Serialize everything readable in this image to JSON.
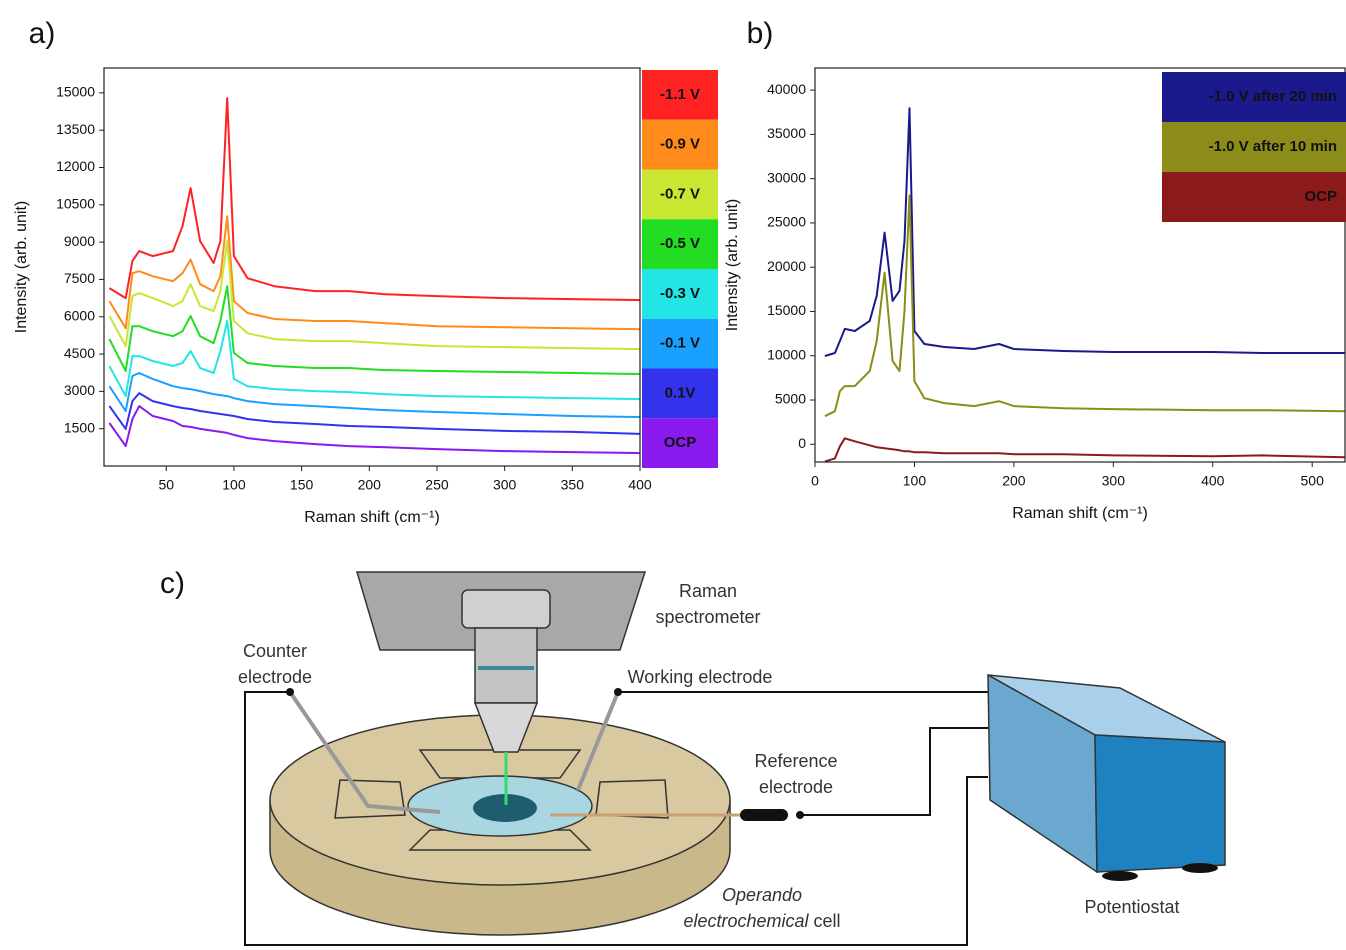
{
  "chart_data": [
    {
      "type": "line",
      "panel_label": "a)",
      "x_label": "Raman shift (cm⁻¹)",
      "y_label": "Intensity (arb. unit)",
      "x": [
        8,
        20,
        25,
        30,
        40,
        55,
        62,
        68,
        75,
        85,
        90,
        95,
        100,
        110,
        130,
        160,
        185,
        210,
        250,
        300,
        350,
        400
      ],
      "xlim": [
        4,
        400
      ],
      "xticks": [
        50,
        100,
        150,
        200,
        250,
        300,
        350,
        400
      ],
      "ylim": [
        0,
        16000
      ],
      "yticks": [
        1500,
        3000,
        4500,
        6000,
        7500,
        9000,
        10500,
        12000,
        13500,
        15000
      ],
      "legend": "right",
      "legend_text_color": "#000000",
      "series": [
        {
          "name": "-1.1 V",
          "color": "#ff2222",
          "values": [
            7150,
            6750,
            8240,
            8640,
            8440,
            8640,
            9640,
            11170,
            9040,
            8160,
            9040,
            14790,
            8440,
            7550,
            7230,
            7030,
            7030,
            6910,
            6830,
            6750,
            6710,
            6670
          ]
        },
        {
          "name": "-0.9 V",
          "color": "#ff8c1a",
          "values": [
            6630,
            5540,
            7750,
            7830,
            7630,
            7430,
            7750,
            8300,
            7310,
            7030,
            7630,
            10040,
            6630,
            6150,
            5910,
            5830,
            5830,
            5750,
            5620,
            5580,
            5540,
            5500
          ]
        },
        {
          "name": "-0.7 V",
          "color": "#c8e632",
          "values": [
            6030,
            4820,
            6830,
            6950,
            6750,
            6430,
            6630,
            7310,
            6430,
            6230,
            7030,
            9040,
            5830,
            5340,
            5100,
            5020,
            5020,
            4940,
            4820,
            4780,
            4740,
            4700
          ]
        },
        {
          "name": "-0.5 V",
          "color": "#22dd22",
          "values": [
            5100,
            3820,
            5620,
            5620,
            5420,
            5220,
            5420,
            6030,
            5220,
            4940,
            5830,
            7230,
            4540,
            4140,
            4020,
            3940,
            3940,
            3860,
            3820,
            3780,
            3740,
            3700
          ]
        },
        {
          "name": "-0.3 V",
          "color": "#22e6e6",
          "values": [
            4020,
            2810,
            4420,
            4420,
            4220,
            4020,
            4140,
            4620,
            3940,
            3740,
            4620,
            5830,
            3500,
            3210,
            3090,
            3010,
            2970,
            2890,
            2810,
            2770,
            2730,
            2690
          ]
        },
        {
          "name": "-0.1 V",
          "color": "#1aa0ff",
          "values": [
            3210,
            2210,
            3620,
            3740,
            3500,
            3210,
            3130,
            3090,
            3010,
            2890,
            2850,
            2810,
            2730,
            2610,
            2490,
            2410,
            2330,
            2250,
            2170,
            2090,
            2010,
            1970
          ]
        },
        {
          "name": "0.1V",
          "color": "#3333ee",
          "values": [
            2410,
            1490,
            2610,
            2930,
            2610,
            2410,
            2330,
            2290,
            2210,
            2130,
            2090,
            2050,
            2010,
            1890,
            1770,
            1690,
            1610,
            1570,
            1490,
            1410,
            1370,
            1290
          ]
        },
        {
          "name": "OCP",
          "color": "#8a1aee",
          "values": [
            1730,
            800,
            1890,
            2410,
            2010,
            1810,
            1610,
            1570,
            1490,
            1410,
            1370,
            1330,
            1250,
            1120,
            1000,
            880,
            800,
            760,
            680,
            600,
            560,
            520
          ]
        }
      ]
    },
    {
      "type": "line",
      "panel_label": "b)",
      "x_label": "Raman shift (cm⁻¹)",
      "y_label": "Intensity (arb. unit)",
      "x": [
        10,
        20,
        25,
        30,
        40,
        55,
        62,
        70,
        78,
        85,
        90,
        95,
        100,
        110,
        130,
        160,
        185,
        200,
        250,
        300,
        400,
        450,
        533
      ],
      "xlim": [
        0,
        533
      ],
      "xticks": [
        0,
        100,
        200,
        300,
        400,
        500
      ],
      "ylim": [
        -2000,
        42500
      ],
      "yticks": [
        0,
        5000,
        10000,
        15000,
        20000,
        25000,
        30000,
        35000,
        40000
      ],
      "legend": "upper right",
      "legend_text_color": "#ffffff",
      "series": [
        {
          "name": "-1.0 V after 20 min",
          "color": "#1a1a8c",
          "values": [
            9970,
            10310,
            11670,
            13030,
            12800,
            13940,
            16770,
            23910,
            16200,
            17340,
            23000,
            37960,
            12800,
            11330,
            10990,
            10760,
            11330,
            10760,
            10540,
            10420,
            10420,
            10310,
            10310
          ]
        },
        {
          "name": "-1.0 V after 10 min",
          "color": "#8c8c1a",
          "values": [
            3170,
            3740,
            6010,
            6570,
            6570,
            8270,
            11670,
            19380,
            9410,
            8270,
            15070,
            28100,
            7140,
            5210,
            4650,
            4310,
            4870,
            4310,
            4080,
            3970,
            3850,
            3850,
            3740
          ]
        },
        {
          "name": "OCP",
          "color": "#8c1a1a",
          "values": [
            -1930,
            -1590,
            -230,
            680,
            340,
            -110,
            -340,
            -450,
            -570,
            -680,
            -790,
            -790,
            -910,
            -910,
            -1020,
            -1020,
            -1020,
            -1130,
            -1130,
            -1250,
            -1360,
            -1250,
            -1470
          ]
        }
      ]
    }
  ],
  "diagram": {
    "panel_label": "c)",
    "raman": [
      "Raman",
      "spectrometer"
    ],
    "counter": [
      "Counter",
      "electrode"
    ],
    "working": "Working electrode",
    "reference": [
      "Reference",
      "electrode"
    ],
    "potentiostat": "Potentiostat",
    "cell": [
      "Operando",
      "electrochemical",
      "cell"
    ]
  }
}
